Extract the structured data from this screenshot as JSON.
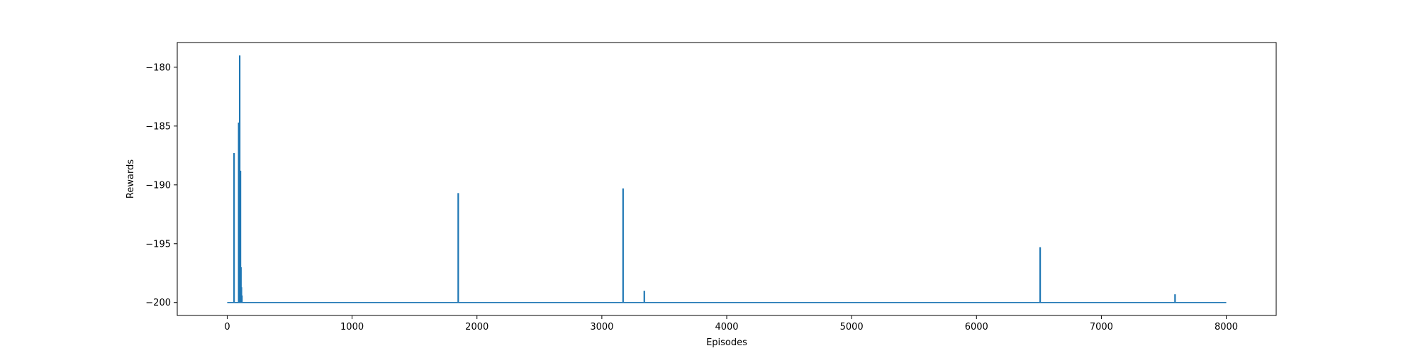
{
  "chart_data": {
    "type": "line",
    "title": "",
    "xlabel": "Episodes",
    "ylabel": "Rewards",
    "xlim": [
      -400,
      8400
    ],
    "ylim": [
      -201.1,
      -177.9
    ],
    "xticks": [
      0,
      1000,
      2000,
      3000,
      4000,
      5000,
      6000,
      7000,
      8000
    ],
    "xtick_labels": [
      "0",
      "1000",
      "2000",
      "3000",
      "4000",
      "5000",
      "6000",
      "7000",
      "8000"
    ],
    "yticks": [
      -200,
      -195,
      -190,
      -185,
      -180
    ],
    "ytick_labels": [
      "−200",
      "−195",
      "−190",
      "−185",
      "−180"
    ],
    "grid": false,
    "legend": "none",
    "series": [
      {
        "color": "#1f77b4",
        "x_range": [
          0,
          8000
        ],
        "baseline": -200,
        "spikes": [
          {
            "x": 55,
            "y": -187.3
          },
          {
            "x": 92,
            "y": -184.7
          },
          {
            "x": 100,
            "y": -179.0
          },
          {
            "x": 106,
            "y": -188.8
          },
          {
            "x": 110,
            "y": -197.0
          },
          {
            "x": 114,
            "y": -198.7
          },
          {
            "x": 118,
            "y": -199.4
          },
          {
            "x": 1850,
            "y": -190.7
          },
          {
            "x": 3170,
            "y": -190.3
          },
          {
            "x": 3340,
            "y": -199.0
          },
          {
            "x": 6510,
            "y": -195.3
          },
          {
            "x": 7590,
            "y": -199.3
          }
        ]
      }
    ]
  }
}
